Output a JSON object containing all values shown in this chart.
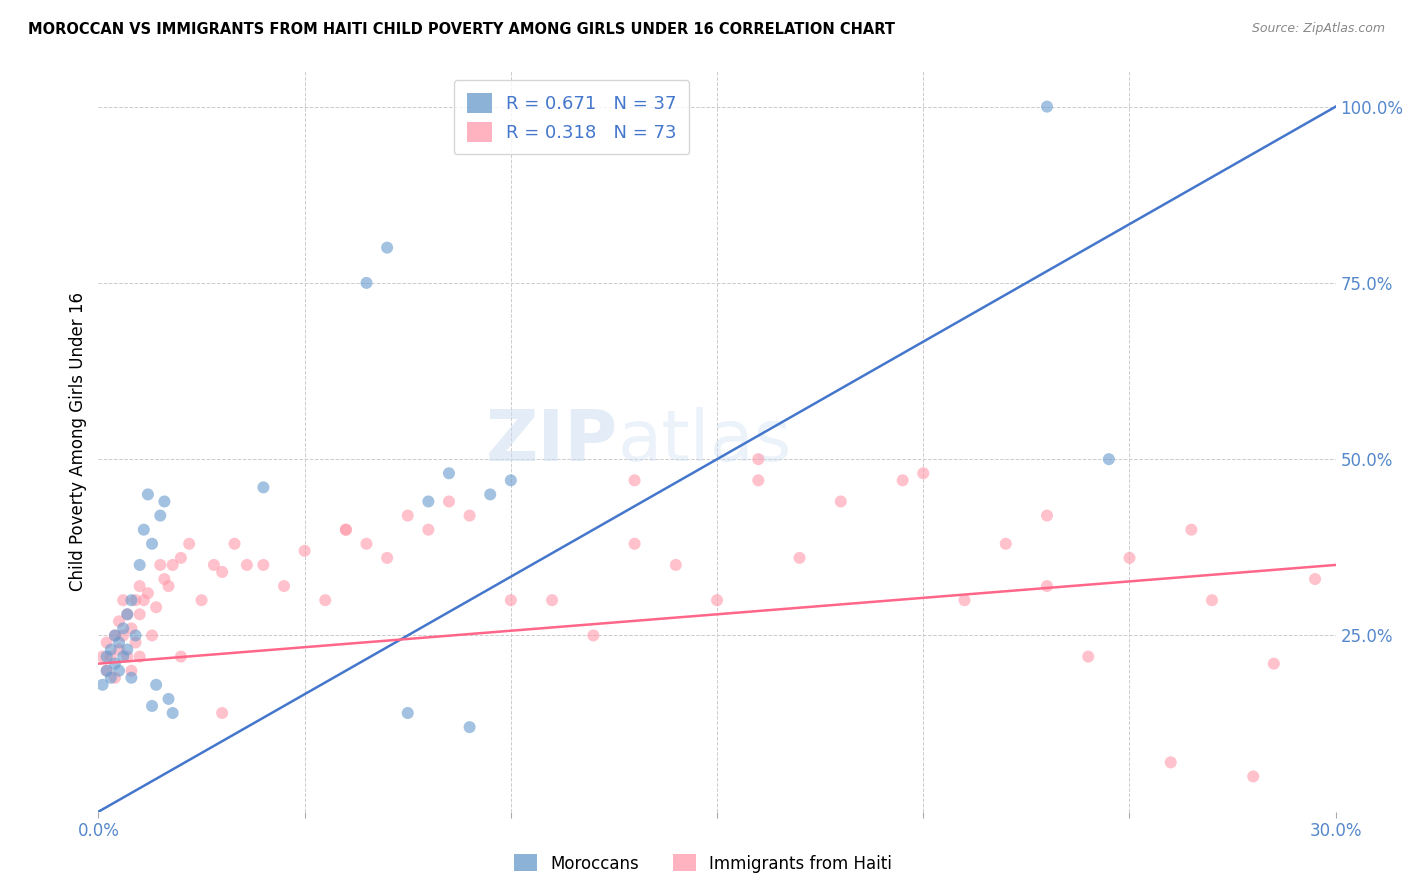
{
  "title": "MOROCCAN VS IMMIGRANTS FROM HAITI CHILD POVERTY AMONG GIRLS UNDER 16 CORRELATION CHART",
  "source": "Source: ZipAtlas.com",
  "ylabel": "Child Poverty Among Girls Under 16",
  "xlabel_ticks": [
    "0.0%",
    "",
    "",
    "",
    "",
    "",
    "",
    "",
    "",
    "",
    "",
    "",
    "30.0%"
  ],
  "ylabel_ticks_right": [
    "100.0%",
    "75.0%",
    "50.0%",
    "25.0%"
  ],
  "xmin": 0.0,
  "xmax": 0.3,
  "ymin": 0.0,
  "ymax": 1.05,
  "blue_color": "#6699CC",
  "pink_color": "#FF99AA",
  "blue_line_color": "#4477CC",
  "pink_line_color": "#FF6688",
  "right_axis_color": "#5588CC",
  "tick_color": "#5588CC",
  "blue_label": "R = 0.671   N = 37",
  "pink_label": "R = 0.318   N = 73",
  "legend_label1": "Moroccans",
  "legend_label2": "Immigrants from Haiti",
  "watermark_zip": "ZIP",
  "watermark_atlas": "atlas",
  "moroccan_x": [
    0.001,
    0.002,
    0.002,
    0.003,
    0.003,
    0.004,
    0.004,
    0.005,
    0.005,
    0.006,
    0.006,
    0.007,
    0.007,
    0.008,
    0.008,
    0.009,
    0.01,
    0.011,
    0.012,
    0.013,
    0.013,
    0.014,
    0.015,
    0.016,
    0.017,
    0.018,
    0.04,
    0.065,
    0.07,
    0.075,
    0.08,
    0.085,
    0.09,
    0.095,
    0.1,
    0.23,
    0.245
  ],
  "moroccan_y": [
    0.18,
    0.2,
    0.22,
    0.19,
    0.23,
    0.21,
    0.25,
    0.2,
    0.24,
    0.22,
    0.26,
    0.28,
    0.23,
    0.3,
    0.19,
    0.25,
    0.35,
    0.4,
    0.45,
    0.15,
    0.38,
    0.18,
    0.42,
    0.44,
    0.16,
    0.14,
    0.46,
    0.75,
    0.8,
    0.14,
    0.44,
    0.48,
    0.12,
    0.45,
    0.47,
    1.0,
    0.5
  ],
  "haiti_x": [
    0.001,
    0.002,
    0.002,
    0.003,
    0.004,
    0.004,
    0.005,
    0.005,
    0.006,
    0.006,
    0.007,
    0.007,
    0.008,
    0.008,
    0.009,
    0.009,
    0.01,
    0.01,
    0.011,
    0.012,
    0.013,
    0.014,
    0.015,
    0.016,
    0.017,
    0.018,
    0.02,
    0.022,
    0.025,
    0.028,
    0.03,
    0.033,
    0.036,
    0.04,
    0.045,
    0.05,
    0.055,
    0.06,
    0.065,
    0.07,
    0.075,
    0.08,
    0.09,
    0.1,
    0.11,
    0.12,
    0.13,
    0.14,
    0.15,
    0.16,
    0.17,
    0.18,
    0.195,
    0.21,
    0.22,
    0.23,
    0.24,
    0.25,
    0.265,
    0.28,
    0.01,
    0.02,
    0.03,
    0.06,
    0.085,
    0.13,
    0.16,
    0.2,
    0.23,
    0.26,
    0.27,
    0.285,
    0.295
  ],
  "haiti_y": [
    0.22,
    0.2,
    0.24,
    0.22,
    0.19,
    0.25,
    0.23,
    0.27,
    0.25,
    0.3,
    0.22,
    0.28,
    0.26,
    0.2,
    0.3,
    0.24,
    0.32,
    0.28,
    0.3,
    0.31,
    0.25,
    0.29,
    0.35,
    0.33,
    0.32,
    0.35,
    0.36,
    0.38,
    0.3,
    0.35,
    0.34,
    0.38,
    0.35,
    0.35,
    0.32,
    0.37,
    0.3,
    0.4,
    0.38,
    0.36,
    0.42,
    0.4,
    0.42,
    0.3,
    0.3,
    0.25,
    0.38,
    0.35,
    0.3,
    0.47,
    0.36,
    0.44,
    0.47,
    0.3,
    0.38,
    0.42,
    0.22,
    0.36,
    0.4,
    0.05,
    0.22,
    0.22,
    0.14,
    0.4,
    0.44,
    0.47,
    0.5,
    0.48,
    0.32,
    0.07,
    0.3,
    0.21,
    0.33
  ],
  "blue_line_x": [
    0.0,
    0.3
  ],
  "blue_line_y": [
    0.0,
    1.0
  ],
  "pink_line_x": [
    0.0,
    0.3
  ],
  "pink_line_y": [
    0.21,
    0.35
  ]
}
